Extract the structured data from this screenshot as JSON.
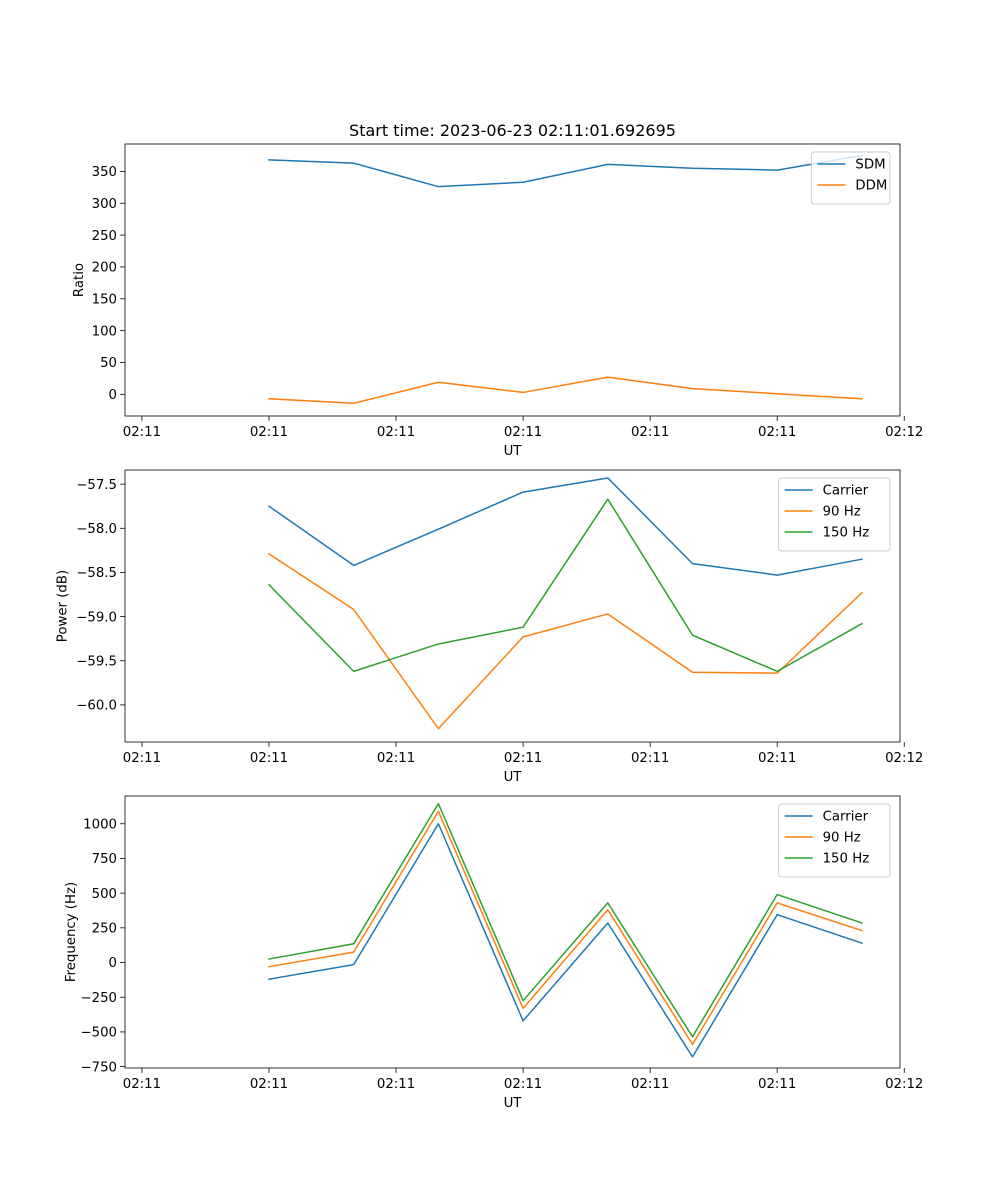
{
  "title": "Start time: 2023-06-23 02:11:01.692695",
  "colors": {
    "blue": "#1f77b4",
    "orange": "#ff7f0e",
    "green": "#2ca02c"
  },
  "chart_data": [
    {
      "type": "line",
      "title": "Start time: 2023-06-23 02:11:01.692695",
      "xlabel": "UT",
      "ylabel": "Ratio",
      "x": [
        1,
        2,
        3,
        4,
        5,
        6,
        7,
        8
      ],
      "xlim": [
        -0.7,
        8.45
      ],
      "xticks": [
        {
          "value": -0.5,
          "label": "02:11"
        },
        {
          "value": 1.0,
          "label": "02:11"
        },
        {
          "value": 2.5,
          "label": "02:11"
        },
        {
          "value": 4.0,
          "label": "02:11"
        },
        {
          "value": 5.5,
          "label": "02:11"
        },
        {
          "value": 7.0,
          "label": "02:11"
        },
        {
          "value": 8.5,
          "label": "02:12"
        }
      ],
      "ylim": [
        -34,
        393
      ],
      "yticks": [
        0,
        50,
        100,
        150,
        200,
        250,
        300,
        350
      ],
      "grid": false,
      "legend_position": "upper right",
      "series": [
        {
          "name": "SDM",
          "color": "#1f77b4",
          "values": [
            368,
            363,
            326,
            333,
            361,
            355,
            352,
            375
          ]
        },
        {
          "name": "DDM",
          "color": "#ff7f0e",
          "values": [
            -7,
            -14,
            19,
            3,
            27,
            9,
            1,
            -7
          ]
        }
      ]
    },
    {
      "type": "line",
      "xlabel": "UT",
      "ylabel": "Power (dB)",
      "x": [
        1,
        2,
        3,
        4,
        5,
        6,
        7,
        8
      ],
      "xlim": [
        -0.7,
        8.45
      ],
      "xticks": [
        {
          "value": -0.5,
          "label": "02:11"
        },
        {
          "value": 1.0,
          "label": "02:11"
        },
        {
          "value": 2.5,
          "label": "02:11"
        },
        {
          "value": 4.0,
          "label": "02:11"
        },
        {
          "value": 5.5,
          "label": "02:11"
        },
        {
          "value": 7.0,
          "label": "02:11"
        },
        {
          "value": 8.5,
          "label": "02:12"
        }
      ],
      "ylim": [
        -60.42,
        -57.34
      ],
      "yticks": [
        -60.0,
        -59.5,
        -59.0,
        -58.5,
        -58.0,
        -57.5
      ],
      "ytick_labels": [
        "−60.0",
        "−59.5",
        "−59.0",
        "−58.5",
        "−58.0",
        "−57.5"
      ],
      "grid": false,
      "legend_position": "upper right",
      "series": [
        {
          "name": "Carrier",
          "color": "#1f77b4",
          "values": [
            -57.75,
            -58.42,
            -58.01,
            -57.59,
            -57.43,
            -58.4,
            -58.53,
            -58.35
          ]
        },
        {
          "name": "90 Hz",
          "color": "#ff7f0e",
          "values": [
            -58.29,
            -58.92,
            -60.27,
            -59.23,
            -58.97,
            -59.63,
            -59.64,
            -58.73
          ]
        },
        {
          "name": "150 Hz",
          "color": "#2ca02c",
          "values": [
            -58.64,
            -59.62,
            -59.31,
            -59.12,
            -57.67,
            -59.21,
            -59.62,
            -59.08
          ]
        }
      ]
    },
    {
      "type": "line",
      "xlabel": "UT",
      "ylabel": "Frequency (Hz)",
      "x": [
        1,
        2,
        3,
        4,
        5,
        6,
        7,
        8
      ],
      "xlim": [
        -0.7,
        8.45
      ],
      "xticks": [
        {
          "value": -0.5,
          "label": "02:11"
        },
        {
          "value": 1.0,
          "label": "02:11"
        },
        {
          "value": 2.5,
          "label": "02:11"
        },
        {
          "value": 4.0,
          "label": "02:11"
        },
        {
          "value": 5.5,
          "label": "02:11"
        },
        {
          "value": 7.0,
          "label": "02:11"
        },
        {
          "value": 8.5,
          "label": "02:12"
        }
      ],
      "ylim": [
        -760,
        1200
      ],
      "yticks": [
        -750,
        -500,
        -250,
        0,
        250,
        500,
        750,
        1000
      ],
      "ytick_labels": [
        "−750",
        "−500",
        "−250",
        "0",
        "250",
        "500",
        "750",
        "1000"
      ],
      "grid": false,
      "legend_position": "upper right",
      "series": [
        {
          "name": "Carrier",
          "color": "#1f77b4",
          "values": [
            -120,
            -15,
            1000,
            -420,
            285,
            -680,
            345,
            140
          ]
        },
        {
          "name": "90 Hz",
          "color": "#ff7f0e",
          "values": [
            -30,
            75,
            1090,
            -330,
            380,
            -590,
            430,
            230
          ]
        },
        {
          "name": "150 Hz",
          "color": "#2ca02c",
          "values": [
            25,
            135,
            1145,
            -275,
            430,
            -535,
            490,
            285
          ]
        }
      ]
    }
  ]
}
